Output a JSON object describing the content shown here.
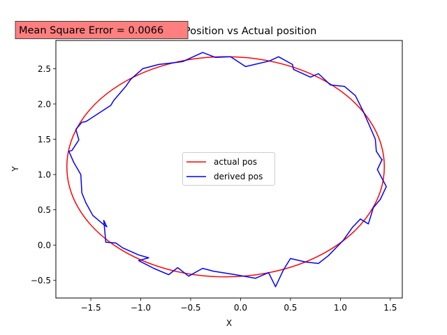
{
  "chart_data": {
    "type": "line",
    "title": "Derived Position vs Actual position",
    "xlabel": "X",
    "ylabel": "Y",
    "xlim": [
      -1.85,
      1.62
    ],
    "ylim": [
      -0.75,
      2.9
    ],
    "xticks": [
      -1.5,
      -1.0,
      -0.5,
      0.0,
      0.5,
      1.0,
      1.5
    ],
    "xtick_labels": [
      "−1.5",
      "−1.0",
      "−0.5",
      "0.0",
      "0.5",
      "1.0",
      "1.5"
    ],
    "yticks": [
      -0.5,
      0.0,
      0.5,
      1.0,
      1.5,
      2.0,
      2.5
    ],
    "ytick_labels": [
      "−0.5",
      "0.0",
      "0.5",
      "1.0",
      "1.5",
      "2.0",
      "2.5"
    ],
    "grid": false,
    "legend_position": "center",
    "annotation": {
      "text": "Mean Square Error = 0.0066",
      "background": "#ff7f7f",
      "border": "#404040",
      "position": "top-left"
    },
    "series": [
      {
        "name": "actual pos",
        "color": "#ff0000",
        "shape": "ellipse",
        "center": [
          -0.15,
          1.11
        ],
        "radius_x": 1.59,
        "radius_y": 1.56,
        "x": [
          1.44,
          1.35,
          1.09,
          0.69,
          0.2,
          -0.32,
          -0.81,
          -1.21,
          -1.48,
          -1.59,
          -1.54,
          -1.32,
          -0.95,
          -0.49,
          0.02,
          0.52,
          0.96,
          1.27,
          1.43,
          1.44
        ],
        "y": [
          1.11,
          1.62,
          2.07,
          2.44,
          2.64,
          2.66,
          2.49,
          2.16,
          1.72,
          1.19,
          0.66,
          0.18,
          -0.19,
          -0.41,
          -0.45,
          -0.31,
          -0.01,
          0.4,
          0.86,
          1.11
        ]
      },
      {
        "name": "derived pos",
        "color": "#0000ff",
        "x": [
          1.42,
          1.36,
          1.35,
          1.28,
          1.23,
          1.15,
          1.04,
          0.9,
          0.78,
          0.7,
          0.53,
          0.52,
          0.38,
          0.29,
          0.05,
          -0.1,
          -0.25,
          -0.38,
          -0.58,
          -0.82,
          -0.98,
          -1.1,
          -1.15,
          -1.27,
          -1.3,
          -1.55,
          -1.59,
          -1.65,
          -1.62,
          -1.69,
          -1.72,
          -1.67,
          -1.6,
          -1.59,
          -1.55,
          -1.48,
          -1.37,
          -1.34,
          -1.37,
          -1.35,
          -1.25,
          -1.18,
          -1.02,
          -0.92,
          -1.02,
          -0.87,
          -0.72,
          -0.63,
          -0.52,
          -0.38,
          -0.27,
          -0.05,
          0.15,
          0.28,
          0.35,
          0.43,
          0.5,
          0.65,
          0.78,
          0.88,
          1.03,
          1.12,
          1.2,
          1.28,
          1.33,
          1.36,
          1.4,
          1.46,
          1.37,
          1.42
        ],
        "y": [
          1.2,
          1.33,
          1.5,
          1.73,
          1.89,
          2.12,
          2.25,
          2.27,
          2.43,
          2.38,
          2.49,
          2.56,
          2.67,
          2.61,
          2.53,
          2.67,
          2.66,
          2.73,
          2.6,
          2.56,
          2.5,
          2.35,
          2.25,
          2.05,
          1.98,
          1.75,
          1.74,
          1.64,
          1.49,
          1.34,
          1.33,
          1.17,
          1.0,
          0.74,
          0.6,
          0.42,
          0.29,
          0.26,
          0.35,
          0.04,
          0.03,
          -0.04,
          -0.14,
          -0.18,
          -0.22,
          -0.33,
          -0.42,
          -0.32,
          -0.44,
          -0.33,
          -0.37,
          -0.42,
          -0.47,
          -0.39,
          -0.59,
          -0.35,
          -0.19,
          -0.24,
          -0.26,
          -0.15,
          0.07,
          0.25,
          0.37,
          0.3,
          0.53,
          0.58,
          0.65,
          0.83,
          1.07,
          1.22
        ]
      }
    ]
  }
}
